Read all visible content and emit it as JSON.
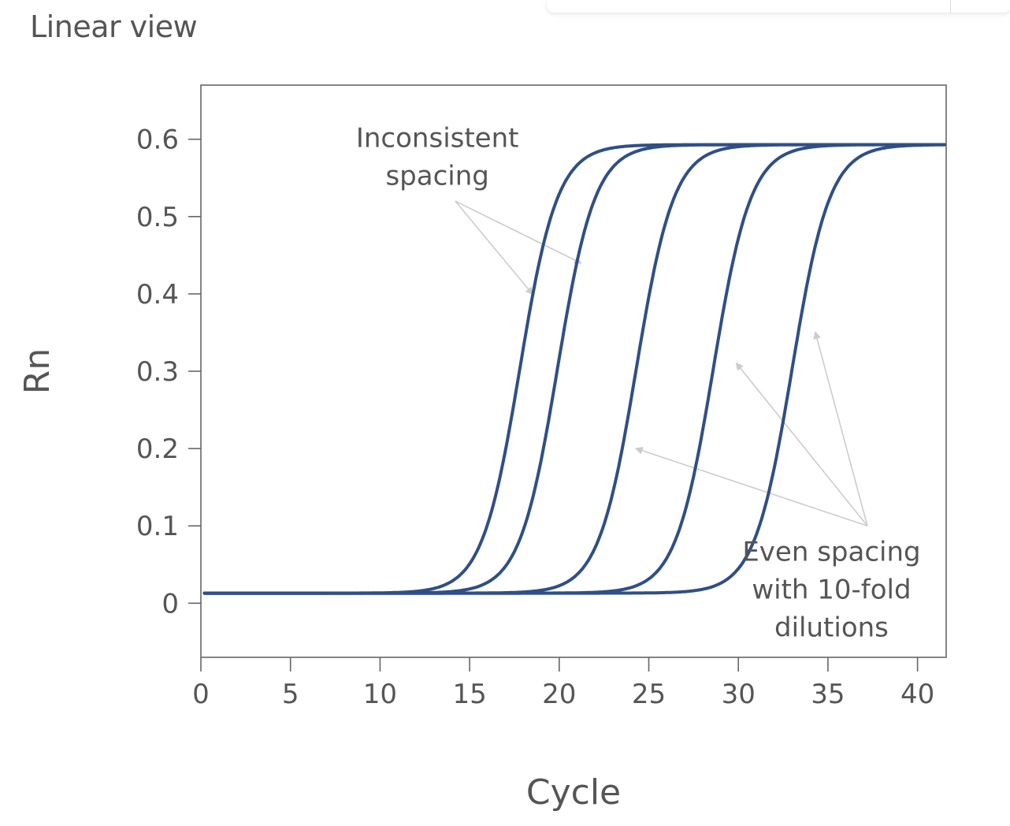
{
  "page": {
    "heading": "Linear view"
  },
  "chart_data": {
    "type": "line",
    "xlabel": "Cycle",
    "ylabel": "Rn",
    "xlim": [
      0,
      41.6
    ],
    "ylim": [
      -0.07,
      0.67
    ],
    "xticks": [
      0,
      5,
      10,
      15,
      20,
      25,
      30,
      35,
      40
    ],
    "yticks": [
      0,
      0.1,
      0.2,
      0.3,
      0.4,
      0.5,
      0.6
    ],
    "grid": false,
    "line_color": "#2f4f86",
    "series": [
      {
        "midpoint": 17.8,
        "baseline": 0.013,
        "plateau": 0.593
      },
      {
        "midpoint": 19.9,
        "baseline": 0.013,
        "plateau": 0.593
      },
      {
        "midpoint": 24.3,
        "baseline": 0.013,
        "plateau": 0.593
      },
      {
        "midpoint": 28.6,
        "baseline": 0.013,
        "plateau": 0.593
      },
      {
        "midpoint": 33.0,
        "baseline": 0.013,
        "plateau": 0.593
      }
    ],
    "annotations": [
      {
        "lines": [
          "Inconsistent",
          "spacing"
        ],
        "label_at": [
          13.2,
          0.59
        ],
        "arrows_from": [
          14.2,
          0.52
        ],
        "arrows_to": [
          [
            21.2,
            0.44
          ],
          [
            18.5,
            0.4
          ]
        ]
      },
      {
        "lines": [
          "Even spacing",
          "with 10-fold",
          "dilutions"
        ],
        "label_at": [
          35.2,
          0.055
        ],
        "arrows_from": [
          37.2,
          0.1
        ],
        "arrows_to": [
          [
            24.3,
            0.2
          ],
          [
            29.9,
            0.31
          ],
          [
            34.3,
            0.35
          ]
        ]
      }
    ]
  }
}
